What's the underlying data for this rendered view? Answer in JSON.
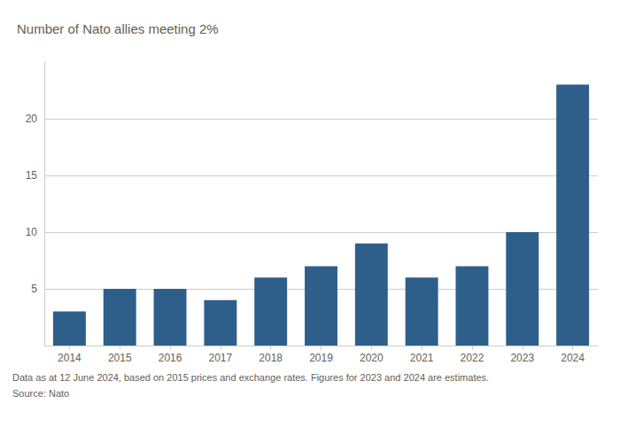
{
  "chart_data": {
    "type": "bar",
    "title": "Number of Nato allies meeting 2%",
    "categories": [
      "2014",
      "2015",
      "2016",
      "2017",
      "2018",
      "2019",
      "2020",
      "2021",
      "2022",
      "2023",
      "2024"
    ],
    "values": [
      3,
      5,
      5,
      4,
      6,
      7,
      9,
      6,
      7,
      10,
      23
    ],
    "color": "#2E5F8A",
    "ylim": [
      0,
      25
    ],
    "yticks": [
      5,
      10,
      15,
      20
    ],
    "grid": true,
    "annotations": [
      "Data as at 12 June 2024, based on 2015 prices and exchange rates. Figures for 2023 and 2024 are estimates.",
      "Source: Nato"
    ]
  }
}
